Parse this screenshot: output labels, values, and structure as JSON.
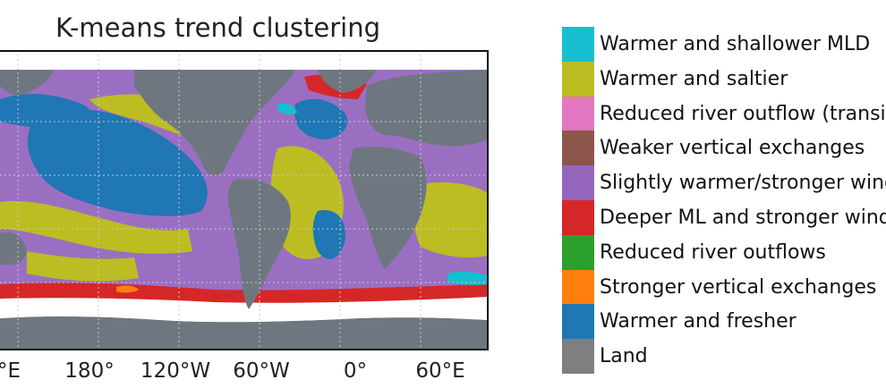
{
  "chart_data": {
    "type": "map",
    "title": "K-means trend clustering",
    "x_ticks": [
      "°E",
      "180°",
      "120°W",
      "60°W",
      "0°",
      "60°E"
    ],
    "legend_placement": "right",
    "grid": true,
    "legend": [
      {
        "label": "Warmer and shallower MLD",
        "color": "#17becf"
      },
      {
        "label": "Warmer and saltier",
        "color": "#bcbd22"
      },
      {
        "label": "Reduced river outflow (transit",
        "color": "#e377c2"
      },
      {
        "label": "Weaker vertical exchanges",
        "color": "#8c564b"
      },
      {
        "label": "Slightly warmer/stronger wind",
        "color": "#9467bd"
      },
      {
        "label": "Deeper ML and stronger wind",
        "color": "#d62728"
      },
      {
        "label": "Reduced river outflows",
        "color": "#2ca02c"
      },
      {
        "label": "Stronger vertical exchanges",
        "color": "#ff7f0e"
      },
      {
        "label": "Warmer and fresher",
        "color": "#1f77b4"
      },
      {
        "label": "Land",
        "color": "#7f7f7f"
      }
    ]
  }
}
